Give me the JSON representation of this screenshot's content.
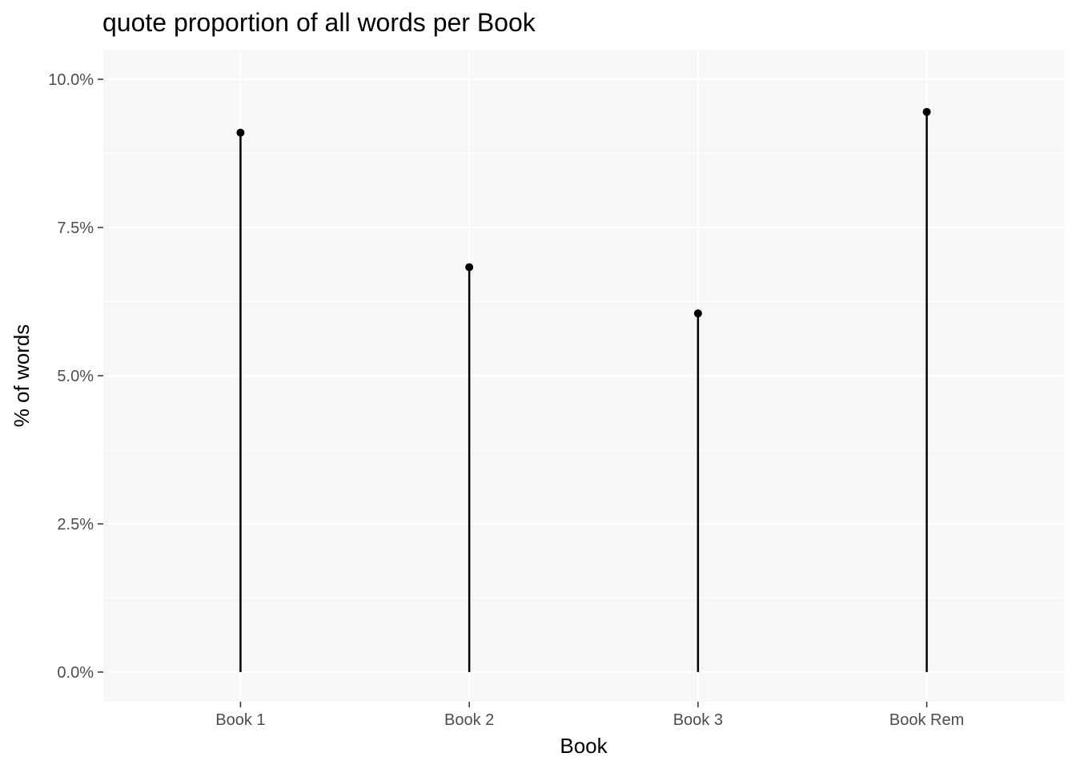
{
  "chart_data": {
    "type": "lollipop",
    "title": "quote proportion of all words per Book",
    "xlabel": "Book",
    "ylabel": "% of words",
    "categories": [
      "Book 1",
      "Book 2",
      "Book 3",
      "Book Rem"
    ],
    "values": [
      9.1,
      6.83,
      6.05,
      9.45
    ],
    "value_unit": "%",
    "ylim": [
      -0.5,
      10.5
    ],
    "yticks": [
      0.0,
      2.5,
      5.0,
      7.5,
      10.0
    ],
    "ytick_labels": [
      "0.0%",
      "2.5%",
      "5.0%",
      "7.5%",
      "10.0%"
    ],
    "grid": true,
    "colors": {
      "panel_background": "#f7f7f7",
      "grid": "#ffffff",
      "marks": "#000000",
      "tick_text": "#4d4d4d",
      "tick_mark": "#333333"
    }
  }
}
